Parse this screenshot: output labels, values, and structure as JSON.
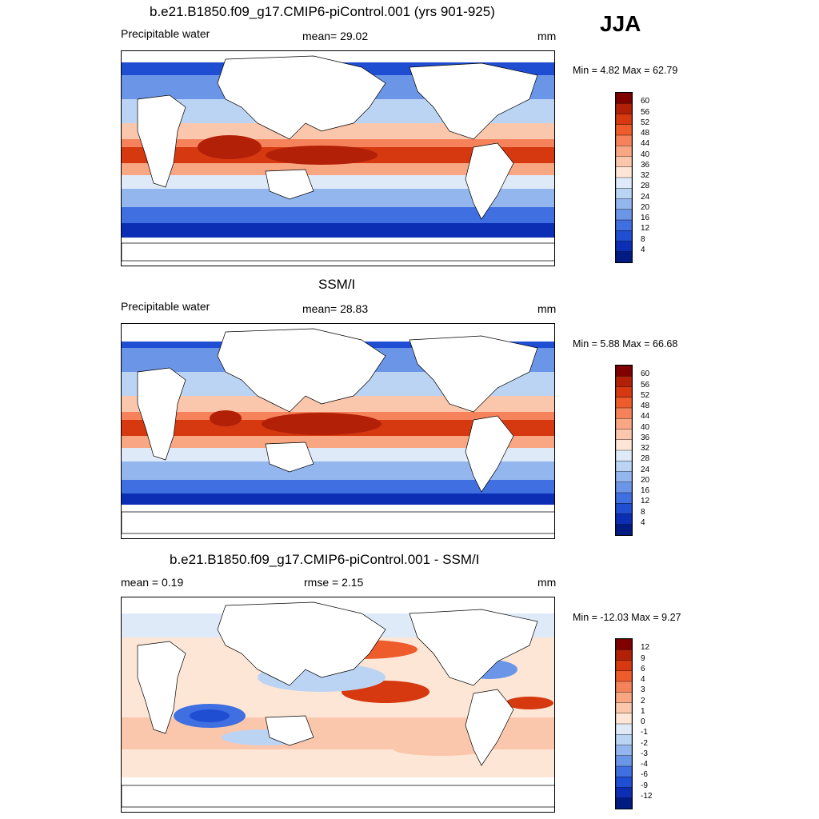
{
  "season": "JJA",
  "panels": [
    {
      "id": "model",
      "title": "b.e21.B1850.f09_g17.CMIP6-piControl.001 (yrs 901-925)",
      "left_label": "Precipitable water",
      "center_label": "mean=  29.02",
      "units": "mm",
      "minmax": "Min =   4.82 Max =  62.79",
      "colorbar_labels": [
        "60",
        "56",
        "52",
        "48",
        "44",
        "40",
        "36",
        "32",
        "28",
        "24",
        "20",
        "16",
        "12",
        "8",
        "4"
      ],
      "colors": [
        "#800000",
        "#b22008",
        "#d63810",
        "#ee5c2c",
        "#f5825a",
        "#f9a682",
        "#fbc7ac",
        "#fde6d6",
        "#dfeaf8",
        "#bcd4f4",
        "#93b6ee",
        "#6b96e8",
        "#3f6fe0",
        "#1f4ed2",
        "#0c2eb4",
        "#001c82"
      ]
    },
    {
      "id": "obs",
      "title": "SSM/I",
      "left_label": "Precipitable water",
      "center_label": "mean=  28.83",
      "units": "mm",
      "minmax": "Min =   5.88 Max =  66.68",
      "colorbar_labels": [
        "60",
        "56",
        "52",
        "48",
        "44",
        "40",
        "36",
        "32",
        "28",
        "24",
        "20",
        "16",
        "12",
        "8",
        "4"
      ],
      "colors": [
        "#800000",
        "#b22008",
        "#d63810",
        "#ee5c2c",
        "#f5825a",
        "#f9a682",
        "#fbc7ac",
        "#fde6d6",
        "#dfeaf8",
        "#bcd4f4",
        "#93b6ee",
        "#6b96e8",
        "#3f6fe0",
        "#1f4ed2",
        "#0c2eb4",
        "#001c82"
      ]
    },
    {
      "id": "diff",
      "title": "b.e21.B1850.f09_g17.CMIP6-piControl.001 - SSM/I",
      "left_label": "mean =   0.19",
      "center_label": "rmse =   2.15",
      "units": "mm",
      "minmax": "Min = -12.03 Max =   9.27",
      "colorbar_labels": [
        "12",
        "9",
        "6",
        "4",
        "3",
        "2",
        "1",
        "0",
        "-1",
        "-2",
        "-3",
        "-4",
        "-6",
        "-9",
        "-12"
      ],
      "colors": [
        "#800000",
        "#b22008",
        "#d63810",
        "#ee5c2c",
        "#f5825a",
        "#f9a682",
        "#fbc7ac",
        "#fde6d6",
        "#dfeaf8",
        "#bcd4f4",
        "#93b6ee",
        "#6b96e8",
        "#3f6fe0",
        "#1f4ed2",
        "#0c2eb4",
        "#001c82"
      ]
    }
  ]
}
